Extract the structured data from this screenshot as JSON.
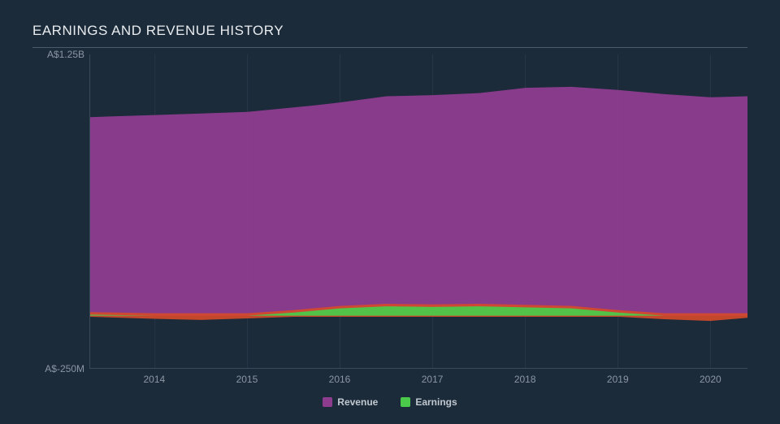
{
  "title": "EARNINGS AND REVENUE HISTORY",
  "chart": {
    "type": "area",
    "background_color": "#1c2b3a",
    "grid_color": "#2a3a4a",
    "axis_line_color": "#3a4a5a",
    "text_color": "#8a97a3",
    "legend_text_color": "#c0c8d0",
    "title_color": "#e8ecef",
    "title_fontsize": 17,
    "label_fontsize": 12,
    "x": {
      "min": 2013.3,
      "max": 2020.4,
      "ticks": [
        2014,
        2015,
        2016,
        2017,
        2018,
        2019,
        2020
      ],
      "tick_labels": [
        "2014",
        "2015",
        "2016",
        "2017",
        "2018",
        "2019",
        "2020"
      ]
    },
    "y": {
      "min": -250,
      "max": 1250,
      "unit": "A$ M",
      "ticks": [
        -250,
        1250
      ],
      "tick_labels": [
        "A$-250M",
        "A$1.25B"
      ],
      "zero_gridline": 0
    },
    "series": [
      {
        "name": "Revenue",
        "color": "#8e3c8e",
        "fill_opacity": 0.95,
        "points": [
          [
            2013.3,
            950
          ],
          [
            2014,
            960
          ],
          [
            2015,
            975
          ],
          [
            2015.7,
            1005
          ],
          [
            2016,
            1020
          ],
          [
            2016.5,
            1050
          ],
          [
            2017,
            1055
          ],
          [
            2017.5,
            1065
          ],
          [
            2018,
            1090
          ],
          [
            2018.5,
            1095
          ],
          [
            2019,
            1080
          ],
          [
            2019.5,
            1060
          ],
          [
            2020,
            1045
          ],
          [
            2020.4,
            1050
          ]
        ]
      },
      {
        "name": "Earnings",
        "color": "#4bc94b",
        "fill_opacity": 0.95,
        "underlay_color": "#d64a2a",
        "points": [
          [
            2013.3,
            5
          ],
          [
            2014,
            -10
          ],
          [
            2014.5,
            -15
          ],
          [
            2015,
            -8
          ],
          [
            2015.5,
            15
          ],
          [
            2016,
            35
          ],
          [
            2016.5,
            45
          ],
          [
            2017,
            42
          ],
          [
            2017.5,
            45
          ],
          [
            2018,
            40
          ],
          [
            2018.5,
            35
          ],
          [
            2019,
            15
          ],
          [
            2019.5,
            -12
          ],
          [
            2020,
            -20
          ],
          [
            2020.4,
            -5
          ]
        ]
      }
    ],
    "legend": {
      "position": "bottom",
      "items": [
        {
          "label": "Revenue",
          "color": "#8e3c8e"
        },
        {
          "label": "Earnings",
          "color": "#4bc94b"
        }
      ]
    }
  }
}
